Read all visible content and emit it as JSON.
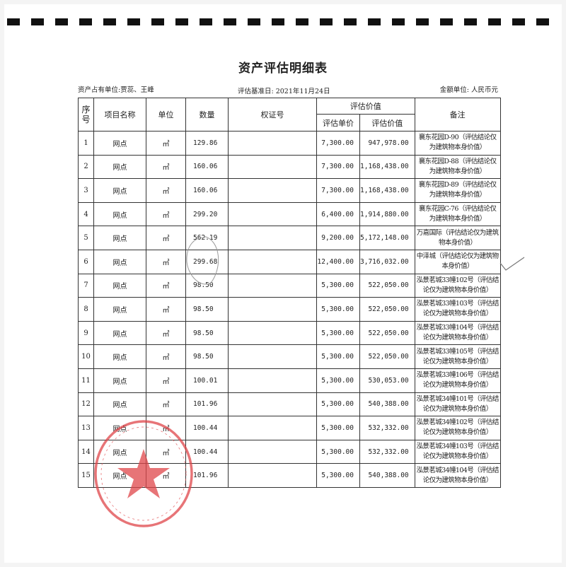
{
  "title": "资产评估明细表",
  "owner": "资产占有单位:贾蕊、王峰",
  "base_date": "评估基准日: 2021年11月24日",
  "currency": "金额单位: 人民币元",
  "headers": {
    "seq": "序号",
    "name": "项目名称",
    "unit": "单位",
    "qty": "数量",
    "cert": "权证号",
    "value_group": "评估价值",
    "unit_price": "评估单价",
    "value": "评估价值",
    "note": "备注"
  },
  "rows": [
    {
      "seq": "1",
      "name": "网点",
      "unit": "㎡",
      "qty": "129.86",
      "cert": "",
      "unit_price": "7,300.00",
      "value": "947,978.00",
      "note": "襄东花园D-90（评估结论仅为建筑物本身价值）"
    },
    {
      "seq": "2",
      "name": "网点",
      "unit": "㎡",
      "qty": "160.06",
      "cert": "",
      "unit_price": "7,300.00",
      "value": "1,168,438.00",
      "note": "襄东花园D-88（评估结论仅为建筑物本身价值）"
    },
    {
      "seq": "3",
      "name": "网点",
      "unit": "㎡",
      "qty": "160.06",
      "cert": "",
      "unit_price": "7,300.00",
      "value": "1,168,438.00",
      "note": "襄东花园D-89（评估结论仅为建筑物本身价值）"
    },
    {
      "seq": "4",
      "name": "网点",
      "unit": "㎡",
      "qty": "299.20",
      "cert": "",
      "unit_price": "6,400.00",
      "value": "1,914,880.00",
      "note": "襄东花园C-76（评估结论仅为建筑物本身价值）"
    },
    {
      "seq": "5",
      "name": "网点",
      "unit": "㎡",
      "qty": "562.19",
      "cert": "",
      "unit_price": "9,200.00",
      "value": "5,172,148.00",
      "note": "万嘉国际（评估结论仅为建筑物本身价值）"
    },
    {
      "seq": "6",
      "name": "网点",
      "unit": "㎡",
      "qty": "299.68",
      "cert": "",
      "unit_price": "12,400.00",
      "value": "3,716,032.00",
      "note": "中泽城（评估结论仅为建筑物本身价值）"
    },
    {
      "seq": "7",
      "name": "网点",
      "unit": "㎡",
      "qty": "98.50",
      "cert": "",
      "unit_price": "5,300.00",
      "value": "522,050.00",
      "note": "泓景茗城33幢102号（评估结论仅为建筑物本身价值）"
    },
    {
      "seq": "8",
      "name": "网点",
      "unit": "㎡",
      "qty": "98.50",
      "cert": "",
      "unit_price": "5,300.00",
      "value": "522,050.00",
      "note": "泓景茗城33幢103号（评估结论仅为建筑物本身价值）"
    },
    {
      "seq": "9",
      "name": "网点",
      "unit": "㎡",
      "qty": "98.50",
      "cert": "",
      "unit_price": "5,300.00",
      "value": "522,050.00",
      "note": "泓景茗城33幢104号（评估结论仅为建筑物本身价值）"
    },
    {
      "seq": "10",
      "name": "网点",
      "unit": "㎡",
      "qty": "98.50",
      "cert": "",
      "unit_price": "5,300.00",
      "value": "522,050.00",
      "note": "泓景茗城33幢105号（评估结论仅为建筑物本身价值）"
    },
    {
      "seq": "11",
      "name": "网点",
      "unit": "㎡",
      "qty": "100.01",
      "cert": "",
      "unit_price": "5,300.00",
      "value": "530,053.00",
      "note": "泓景茗城33幢106号（评估结论仅为建筑物本身价值）"
    },
    {
      "seq": "12",
      "name": "网点",
      "unit": "㎡",
      "qty": "101.96",
      "cert": "",
      "unit_price": "5,300.00",
      "value": "540,388.00",
      "note": "泓景茗城34幢101号（评估结论仅为建筑物本身价值）"
    },
    {
      "seq": "13",
      "name": "网点",
      "unit": "㎡",
      "qty": "100.44",
      "cert": "",
      "unit_price": "5,300.00",
      "value": "532,332.00",
      "note": "泓景茗城34幢102号（评估结论仅为建筑物本身价值）"
    },
    {
      "seq": "14",
      "name": "网点",
      "unit": "㎡",
      "qty": "100.44",
      "cert": "",
      "unit_price": "5,300.00",
      "value": "532,332.00",
      "note": "泓景茗城34幢103号（评估结论仅为建筑物本身价值）"
    },
    {
      "seq": "15",
      "name": "网点",
      "unit": "㎡",
      "qty": "101.96",
      "cert": "",
      "unit_price": "5,300.00",
      "value": "540,388.00",
      "note": "泓景茗城34幢104号（评估结论仅为建筑物本身价值）"
    }
  ],
  "stamp": {
    "org": "辽阳智达资产评估事务所",
    "code": "2110020000212",
    "color": "#e0464a"
  }
}
